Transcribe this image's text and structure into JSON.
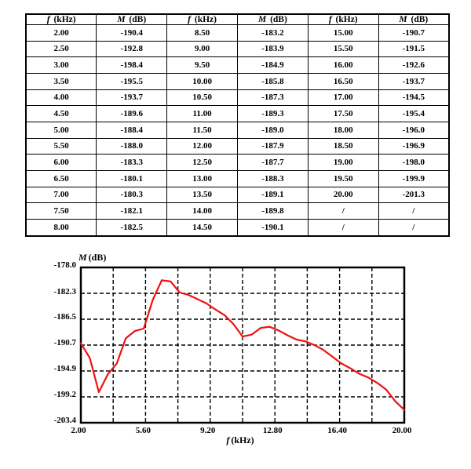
{
  "colors": {
    "line": "#ee1111",
    "grid": "#000000",
    "border": "#000000",
    "text": "#000000",
    "background": "#ffffff"
  },
  "table": {
    "columns": [
      {
        "symbol": "f",
        "unit": "(kHz)"
      },
      {
        "symbol": "M",
        "unit": "(dB)"
      },
      {
        "symbol": "f",
        "unit": "(kHz)"
      },
      {
        "symbol": "M",
        "unit": "(dB)"
      },
      {
        "symbol": "f",
        "unit": "(kHz)"
      },
      {
        "symbol": "M",
        "unit": "(dB)"
      }
    ],
    "rows": [
      [
        "2.00",
        "-190.4",
        "8.50",
        "-183.2",
        "15.00",
        "-190.7"
      ],
      [
        "2.50",
        "-192.8",
        "9.00",
        "-183.9",
        "15.50",
        "-191.5"
      ],
      [
        "3.00",
        "-198.4",
        "9.50",
        "-184.9",
        "16.00",
        "-192.6"
      ],
      [
        "3.50",
        "-195.5",
        "10.00",
        "-185.8",
        "16.50",
        "-193.7"
      ],
      [
        "4.00",
        "-193.7",
        "10.50",
        "-187.3",
        "17.00",
        "-194.5"
      ],
      [
        "4.50",
        "-189.6",
        "11.00",
        "-189.3",
        "17.50",
        "-195.4"
      ],
      [
        "5.00",
        "-188.4",
        "11.50",
        "-189.0",
        "18.00",
        "-196.0"
      ],
      [
        "5.50",
        "-188.0",
        "12.00",
        "-187.9",
        "18.50",
        "-196.9"
      ],
      [
        "6.00",
        "-183.3",
        "12.50",
        "-187.7",
        "19.00",
        "-198.0"
      ],
      [
        "6.50",
        "-180.1",
        "13.00",
        "-188.3",
        "19.50",
        "-199.9"
      ],
      [
        "7.00",
        "-180.3",
        "13.50",
        "-189.1",
        "20.00",
        "-201.3"
      ],
      [
        "7.50",
        "-182.1",
        "14.00",
        "-189.8",
        "/",
        "/"
      ],
      [
        "8.00",
        "-182.5",
        "14.50",
        "-190.1",
        "/",
        "/"
      ]
    ]
  },
  "chart_data": {
    "type": "line",
    "title": "",
    "ylabel": {
      "symbol": "M",
      "unit": "(dB)"
    },
    "xlabel": {
      "symbol": "f",
      "unit": "(kHz)"
    },
    "xlim": [
      2,
      20
    ],
    "ylim": [
      -203.4,
      -178.0
    ],
    "grid": true,
    "x_divisions": 10,
    "y_divisions": 6,
    "x": [
      2.0,
      2.5,
      3.0,
      3.5,
      4.0,
      4.5,
      5.0,
      5.5,
      6.0,
      6.5,
      7.0,
      7.5,
      8.0,
      8.5,
      9.0,
      9.5,
      10.0,
      10.5,
      11.0,
      11.5,
      12.0,
      12.5,
      13.0,
      13.5,
      14.0,
      14.5,
      15.0,
      15.5,
      16.0,
      16.5,
      17.0,
      17.5,
      18.0,
      18.5,
      19.0,
      19.5,
      20.0
    ],
    "series": [
      {
        "name": "M (dB)",
        "color": "#ee1111",
        "values": [
          -190.4,
          -192.8,
          -198.4,
          -195.5,
          -193.7,
          -189.6,
          -188.4,
          -188.0,
          -183.3,
          -180.1,
          -180.3,
          -182.1,
          -182.5,
          -183.2,
          -183.9,
          -184.9,
          -185.8,
          -187.3,
          -189.3,
          -189.0,
          -187.9,
          -187.7,
          -188.3,
          -189.1,
          -189.8,
          -190.1,
          -190.7,
          -191.5,
          -192.6,
          -193.7,
          -194.5,
          -195.4,
          -196.0,
          -196.9,
          -198.0,
          -199.9,
          -201.3
        ]
      }
    ],
    "x_ticks": [
      {
        "value": 2.0,
        "label": "2.00"
      },
      {
        "value": 5.6,
        "label": "5.60"
      },
      {
        "value": 9.2,
        "label": "9.20"
      },
      {
        "value": 12.8,
        "label": "12.80"
      },
      {
        "value": 16.4,
        "label": "16.40"
      },
      {
        "value": 20.0,
        "label": "20.00"
      }
    ],
    "y_ticks": [
      {
        "value": -178.0,
        "label": "-178.0"
      },
      {
        "value": -182.3,
        "label": "-182.3"
      },
      {
        "value": -186.5,
        "label": "-186.5"
      },
      {
        "value": -190.7,
        "label": "-190.7"
      },
      {
        "value": -194.9,
        "label": "-194.9"
      },
      {
        "value": -199.2,
        "label": "-199.2"
      },
      {
        "value": -203.4,
        "label": "-203.4"
      }
    ]
  }
}
